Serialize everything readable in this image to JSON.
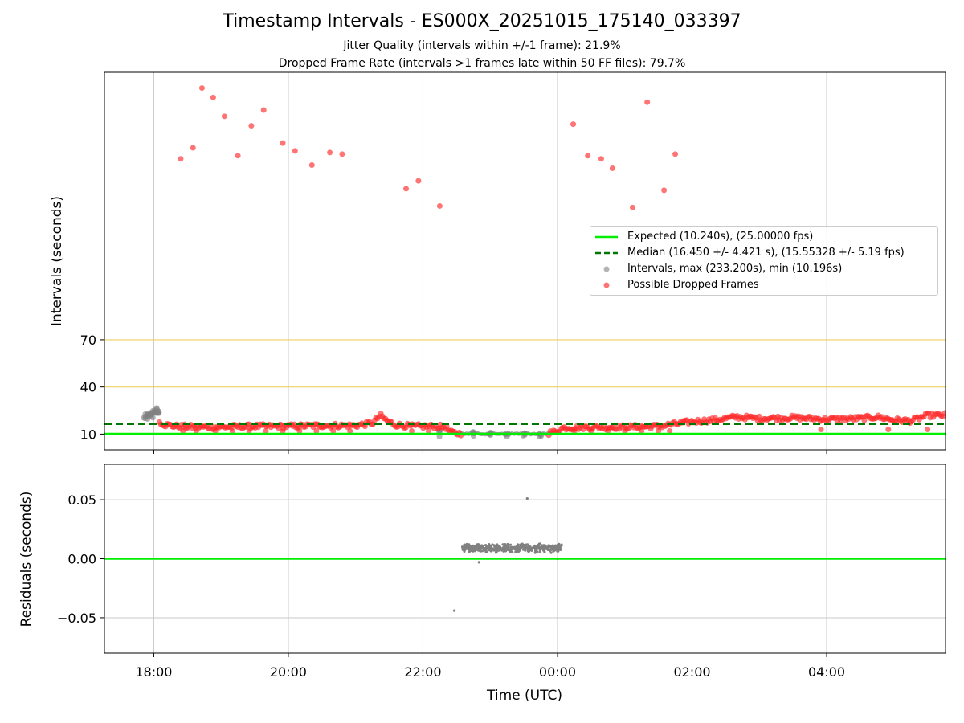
{
  "titles": {
    "main": "Timestamp Intervals - ES000X_20251015_175140_033397",
    "jitter": "Jitter Quality (intervals within +/-1 frame): 21.9%",
    "dropped": "Dropped Frame Rate (intervals >1 frames late within 50 FF files): 79.7%"
  },
  "colors": {
    "expected": "#00ee00",
    "median": "#007700",
    "intervals": "#808080",
    "dropped": "#ff2a2a",
    "threshold": "#f2c744",
    "grid": "#c8c8c8"
  },
  "legend": {
    "placement": "center-right",
    "expected": "Expected (10.240s), (25.00000 fps)",
    "median": "Median (16.450 +/- 4.421 s), (15.55328 +/- 5.19 fps)",
    "intervals": "Intervals, max (233.200s), min (10.196s)",
    "dropped": "Possible Dropped Frames"
  },
  "chart_data": [
    {
      "type": "scatter",
      "ylabel": "Intervals (seconds)",
      "y_ticks": [
        "10",
        "40",
        "70"
      ],
      "ylim": [
        0,
        240
      ],
      "xlim": [
        "17:16",
        "05:46"
      ],
      "grid": "x-only",
      "reference_lines": {
        "expected": 10.24,
        "median": 16.45,
        "thresholds": [
          40,
          70
        ]
      },
      "series": [
        {
          "name": "Intervals, max (233.200s), min (10.196s)",
          "points": [
            [
              "17:52",
              22
            ],
            [
              "17:54",
              21
            ],
            [
              "17:56",
              23
            ],
            [
              "17:58",
              22
            ],
            [
              "18:00",
              24
            ],
            [
              "18:02",
              25
            ],
            [
              "18:04",
              23
            ],
            [
              "22:15",
              10.2
            ],
            [
              "22:45",
              10.3
            ],
            [
              "23:00",
              10.2
            ],
            [
              "23:15",
              10.3
            ],
            [
              "23:30",
              10.2
            ],
            [
              "23:45",
              10.3
            ]
          ]
        },
        {
          "name": "Possible Dropped Frames",
          "outliers": [
            [
              "18:24",
              185
            ],
            [
              "18:35",
              192
            ],
            [
              "18:43",
              230
            ],
            [
              "18:53",
              224
            ],
            [
              "19:03",
              212
            ],
            [
              "19:15",
              187
            ],
            [
              "19:27",
              206
            ],
            [
              "19:38",
              216
            ],
            [
              "19:55",
              195
            ],
            [
              "20:06",
              190
            ],
            [
              "20:21",
              181
            ],
            [
              "20:37",
              189
            ],
            [
              "20:48",
              188
            ],
            [
              "21:45",
              166
            ],
            [
              "21:56",
              171
            ],
            [
              "22:15",
              155
            ],
            [
              "00:14",
              207
            ],
            [
              "00:27",
              187
            ],
            [
              "00:39",
              185
            ],
            [
              "00:49",
              179
            ],
            [
              "01:07",
              154
            ],
            [
              "01:20",
              221
            ],
            [
              "01:35",
              165
            ],
            [
              "01:45",
              188
            ]
          ],
          "band": [
            [
              "18:05",
              18
            ],
            [
              "18:10",
              16
            ],
            [
              "18:20",
              15
            ],
            [
              "18:40",
              14.5
            ],
            [
              "19:00",
              14.5
            ],
            [
              "19:30",
              15
            ],
            [
              "20:00",
              15
            ],
            [
              "20:30",
              15.5
            ],
            [
              "21:00",
              15.5
            ],
            [
              "21:15",
              17
            ],
            [
              "21:22",
              22
            ],
            [
              "21:27",
              19
            ],
            [
              "21:35",
              16
            ],
            [
              "21:50",
              15
            ],
            [
              "22:10",
              15
            ],
            [
              "22:20",
              14.5
            ],
            [
              "22:25",
              11
            ],
            [
              "22:32",
              10.4
            ],
            [
              "23:50",
              10.4
            ],
            [
              "23:58",
              11.5
            ],
            [
              "00:05",
              14
            ],
            [
              "00:30",
              14.5
            ],
            [
              "01:00",
              14.5
            ],
            [
              "01:30",
              15
            ],
            [
              "01:45",
              16.5
            ],
            [
              "02:00",
              18
            ],
            [
              "02:20",
              19
            ],
            [
              "02:40",
              21
            ],
            [
              "03:00",
              20
            ],
            [
              "03:30",
              20.5
            ],
            [
              "04:00",
              19.5
            ],
            [
              "04:30",
              20
            ],
            [
              "04:45",
              21
            ],
            [
              "05:00",
              19
            ],
            [
              "05:15",
              18.5
            ],
            [
              "05:30",
              22
            ],
            [
              "05:46",
              22
            ]
          ],
          "low_outliers": [
            [
              "18:26",
              12
            ],
            [
              "18:38",
              12
            ],
            [
              "18:55",
              12
            ],
            [
              "19:10",
              12
            ],
            [
              "19:25",
              12
            ],
            [
              "19:40",
              12
            ],
            [
              "19:55",
              12
            ],
            [
              "20:10",
              12
            ],
            [
              "20:25",
              12
            ],
            [
              "20:40",
              12
            ],
            [
              "20:55",
              12
            ],
            [
              "21:50",
              12
            ],
            [
              "22:05",
              12
            ],
            [
              "00:15",
              12
            ],
            [
              "00:30",
              12
            ],
            [
              "00:45",
              12
            ],
            [
              "01:00",
              12
            ],
            [
              "01:15",
              12
            ],
            [
              "01:30",
              12
            ],
            [
              "01:40",
              12
            ],
            [
              "03:55",
              13
            ],
            [
              "04:55",
              13
            ],
            [
              "05:30",
              13
            ]
          ]
        }
      ]
    },
    {
      "type": "scatter",
      "xlabel": "Time (UTC)",
      "ylabel": "Residuals (seconds)",
      "x_ticks": [
        "18:00",
        "20:00",
        "22:00",
        "00:00",
        "02:00",
        "04:00"
      ],
      "y_ticks": [
        "0.05",
        "0.00",
        "−0.05"
      ],
      "ylim": [
        -0.08,
        0.08
      ],
      "grid": true,
      "reference_line": 0,
      "series": [
        {
          "name": "Residuals",
          "x_range": [
            "22:35",
            "00:04"
          ],
          "y_mean": 0.009,
          "y_spread": 0.004,
          "extra_points": [
            [
              "23:33",
              0.051
            ],
            [
              "22:28",
              -0.044
            ],
            [
              "22:50",
              -0.003
            ],
            [
              "00:00",
              0.0
            ]
          ]
        }
      ]
    }
  ]
}
